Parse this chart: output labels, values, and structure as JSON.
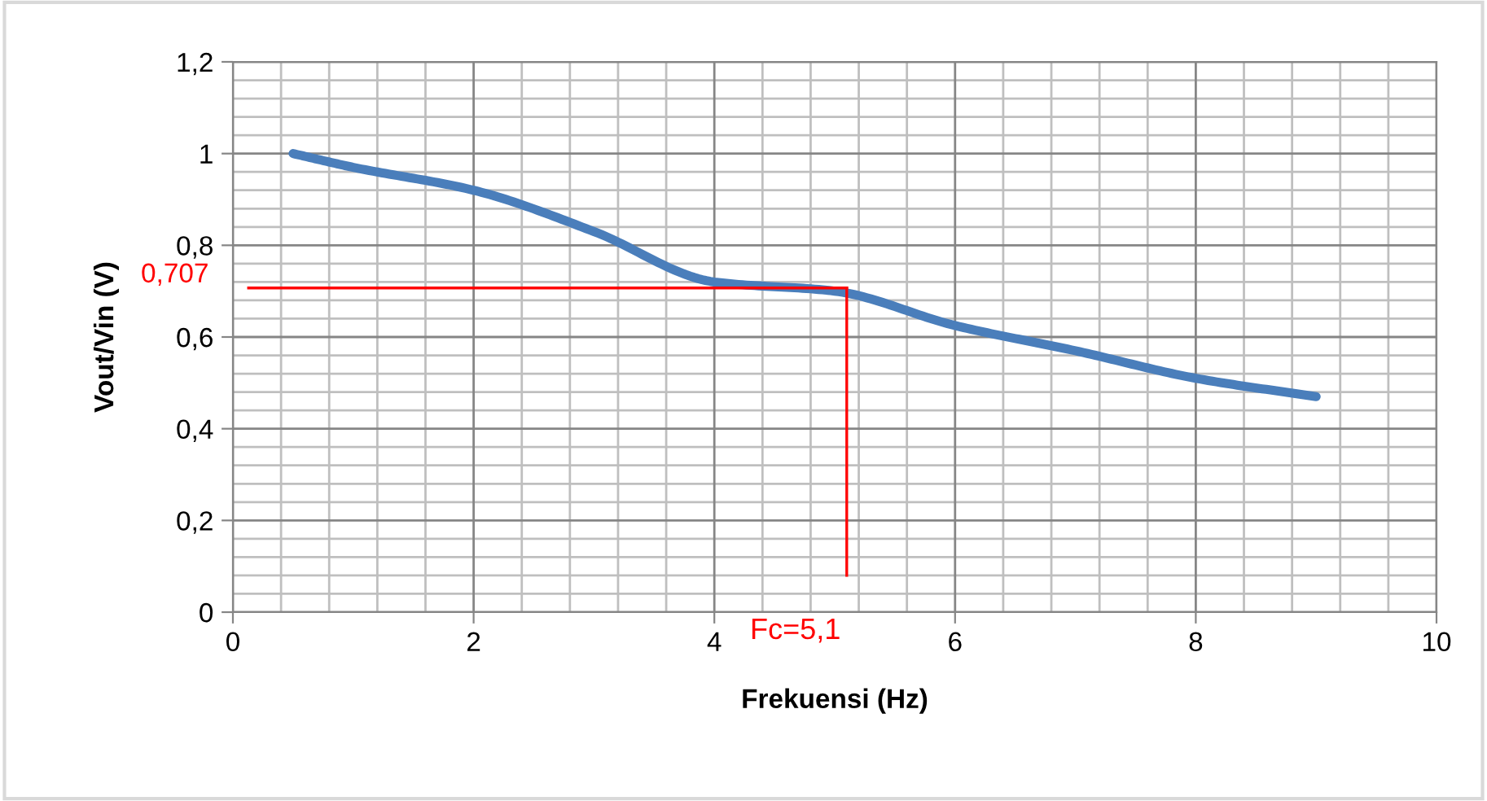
{
  "chart_data": {
    "type": "line",
    "xlabel": "Frekuensi (Hz)",
    "ylabel": "Vout/Vin (V)",
    "x": [
      0.5,
      1,
      2,
      3,
      4,
      5,
      6,
      7,
      8,
      9
    ],
    "series": [
      {
        "color": "#4a7ebb",
        "values": [
          1.0,
          0.97,
          0.92,
          0.83,
          0.72,
          0.7,
          0.625,
          0.57,
          0.51,
          0.47
        ]
      }
    ],
    "xlim": [
      0,
      10
    ],
    "xticks": [
      0,
      2,
      4,
      6,
      8,
      10
    ],
    "ylim": [
      0,
      1.2
    ],
    "yticks": [
      0,
      {
        "value": 0.2,
        "label": "0,2"
      },
      {
        "value": 0.4,
        "label": "0,4"
      },
      {
        "value": 0.6,
        "label": "0,6"
      },
      {
        "value": 0.8,
        "label": "0,8"
      },
      1,
      {
        "value": 1.2,
        "label": "1,2"
      }
    ],
    "ref_lines": [
      {
        "axis": "y",
        "value": 0.707,
        "label": "0,707",
        "color": "#ff0000"
      },
      {
        "axis": "x",
        "value": 5.1,
        "label": "Fc=5,1",
        "color": "#ff0000"
      }
    ],
    "grid": true,
    "marker": "none",
    "line_style": "solid",
    "legend": false
  }
}
